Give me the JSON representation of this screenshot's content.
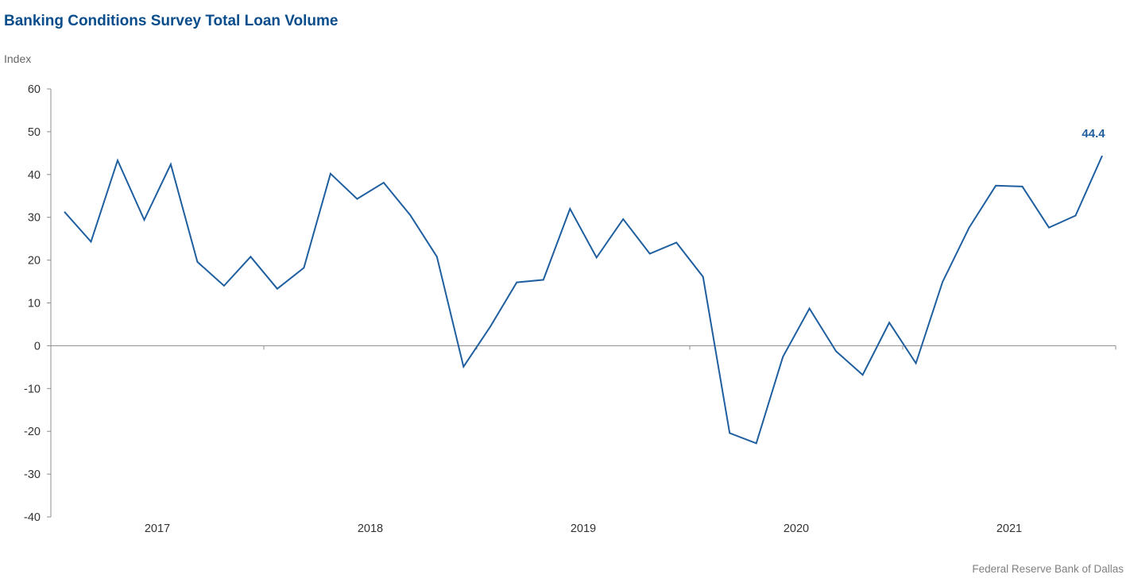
{
  "chart_data": {
    "type": "line",
    "title": "Banking Conditions Survey Total Loan Volume",
    "ylabel": "Index",
    "source": "Federal Reserve Bank of Dallas",
    "ylim": [
      -40,
      60
    ],
    "yticks": [
      60,
      50,
      40,
      30,
      20,
      10,
      0,
      -10,
      -20,
      -30,
      -40
    ],
    "x_axis_labels": [
      "2017",
      "2018",
      "2019",
      "2020",
      "2021"
    ],
    "last_value_label": "44.4",
    "line_color": "#1f5f9f",
    "series": [
      {
        "values": [
          31.3,
          24.3,
          43.3,
          29.4,
          42.4,
          19.6,
          14.0,
          20.8,
          13.3,
          18.2,
          40.2,
          34.3,
          38.1,
          30.5,
          20.8,
          -4.9,
          4.4,
          14.8,
          15.4,
          32.0,
          20.6,
          29.6,
          21.5,
          24.1,
          16.1,
          -20.4,
          -22.8,
          -2.6,
          8.7,
          -1.3,
          -6.8,
          5.4,
          -4.1,
          14.9,
          27.6,
          37.4,
          37.2,
          27.6,
          30.4,
          44.4
        ]
      }
    ]
  }
}
